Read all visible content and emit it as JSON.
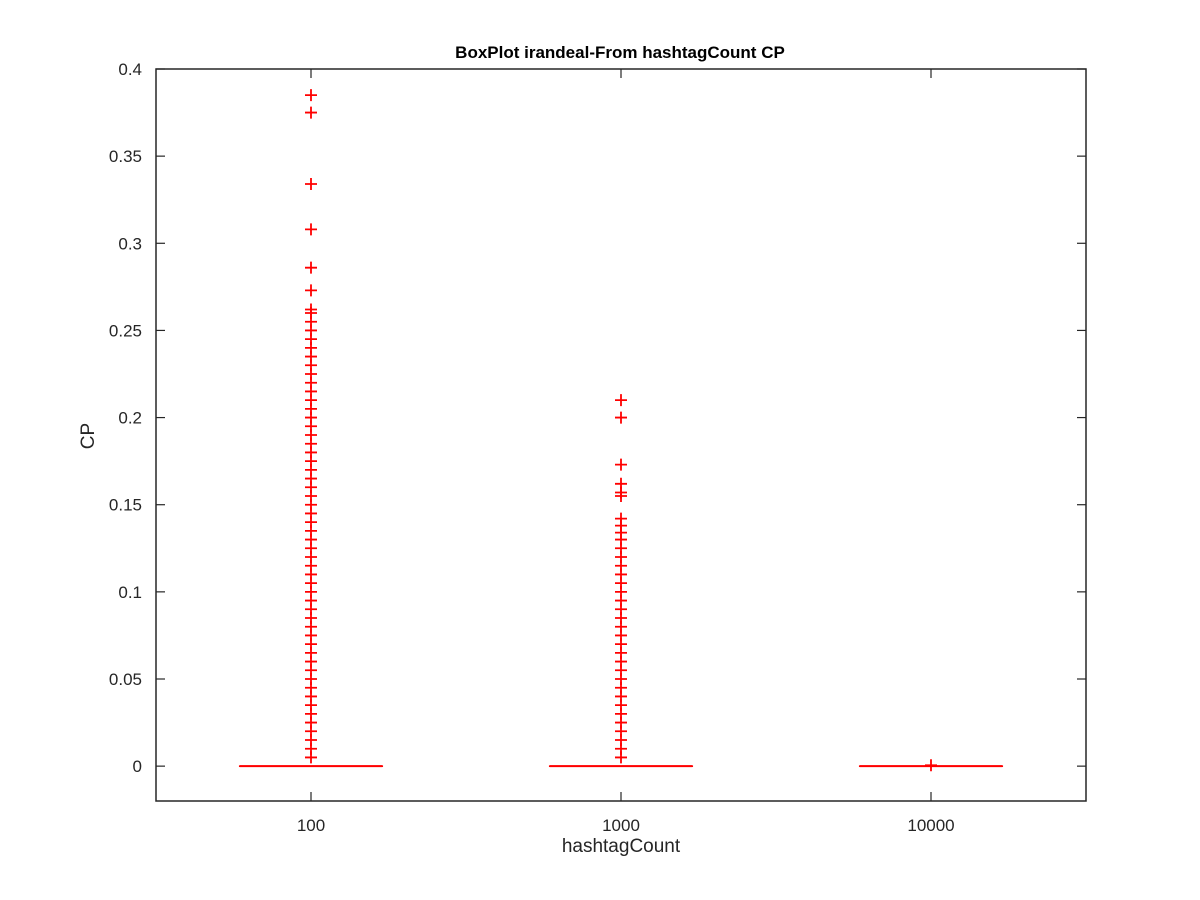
{
  "chart_data": {
    "type": "box",
    "title": "BoxPlot irandeal-From hashtagCount CP",
    "xlabel": "hashtagCount",
    "ylabel": "CP",
    "ylim": [
      -0.02,
      0.4
    ],
    "yticks": [
      0,
      0.05,
      0.1,
      0.15,
      0.2,
      0.25,
      0.3,
      0.35,
      0.4
    ],
    "ytick_labels": [
      "0",
      "0.05",
      "0.1",
      "0.15",
      "0.2",
      "0.25",
      "0.3",
      "0.35",
      "0.4"
    ],
    "categories": [
      "100",
      "1000",
      "10000"
    ],
    "series_color": "#ff0000",
    "axis_color": "#262626",
    "grid": false,
    "boxes": [
      {
        "category": "100",
        "median": 0,
        "q1": 0,
        "q3": 0,
        "whisker_low": 0,
        "whisker_high": 0,
        "outliers": [
          0.385,
          0.375,
          0.334,
          0.308,
          0.286,
          0.273,
          0.262,
          0.26,
          0.255,
          0.25,
          0.245,
          0.24,
          0.235,
          0.23,
          0.225,
          0.22,
          0.215,
          0.21,
          0.205,
          0.2,
          0.195,
          0.19,
          0.185,
          0.18,
          0.175,
          0.17,
          0.165,
          0.16,
          0.155,
          0.15,
          0.145,
          0.14,
          0.135,
          0.13,
          0.125,
          0.12,
          0.115,
          0.11,
          0.105,
          0.1,
          0.095,
          0.09,
          0.085,
          0.08,
          0.075,
          0.07,
          0.065,
          0.06,
          0.055,
          0.05,
          0.045,
          0.04,
          0.035,
          0.03,
          0.025,
          0.02,
          0.015,
          0.01,
          0.005
        ]
      },
      {
        "category": "1000",
        "median": 0,
        "q1": 0,
        "q3": 0,
        "whisker_low": 0,
        "whisker_high": 0,
        "outliers": [
          0.21,
          0.2,
          0.173,
          0.162,
          0.157,
          0.155,
          0.142,
          0.138,
          0.134,
          0.13,
          0.125,
          0.12,
          0.115,
          0.11,
          0.105,
          0.1,
          0.095,
          0.09,
          0.085,
          0.08,
          0.075,
          0.07,
          0.065,
          0.06,
          0.055,
          0.05,
          0.045,
          0.04,
          0.035,
          0.03,
          0.025,
          0.02,
          0.015,
          0.01,
          0.005
        ]
      },
      {
        "category": "10000",
        "median": 0,
        "q1": 0,
        "q3": 0,
        "whisker_low": 0,
        "whisker_high": 0,
        "outliers": [
          0.0005
        ]
      }
    ]
  }
}
